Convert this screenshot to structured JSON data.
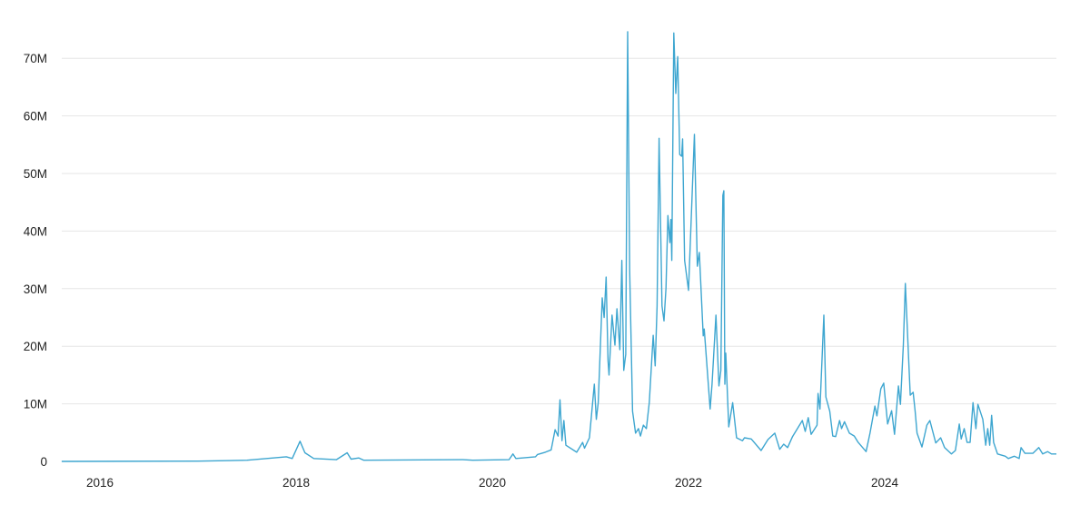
{
  "chart_data": {
    "type": "line",
    "title": "",
    "xlabel": "",
    "ylabel": "",
    "x_unit": "year",
    "xlim": [
      2015.6,
      2025.75
    ],
    "ylim": [
      0,
      75000000
    ],
    "grid": "horizontal",
    "legend": "none",
    "line_color": "#3ea6d0",
    "x_ticks": [
      "2016",
      "2018",
      "2020",
      "2022",
      "2024"
    ],
    "x_tick_values": [
      2016,
      2018,
      2020,
      2022,
      2024
    ],
    "y_ticks": [
      "0",
      "10M",
      "20M",
      "30M",
      "40M",
      "50M",
      "60M",
      "70M"
    ],
    "y_tick_values": [
      0,
      10,
      20,
      30,
      40,
      50,
      60,
      70
    ],
    "y_value_unit": "millions",
    "series": [
      {
        "points": [
          [
            2015.61,
            0
          ],
          [
            2017.0,
            0.05
          ],
          [
            2017.5,
            0.2
          ],
          [
            2017.9,
            0.8
          ],
          [
            2017.96,
            0.5
          ],
          [
            2018.04,
            3.5
          ],
          [
            2018.09,
            1.5
          ],
          [
            2018.18,
            0.5
          ],
          [
            2018.41,
            0.3
          ],
          [
            2018.52,
            1.5
          ],
          [
            2018.56,
            0.4
          ],
          [
            2018.64,
            0.6
          ],
          [
            2018.69,
            0.2
          ],
          [
            2019.7,
            0.3
          ],
          [
            2019.8,
            0.2
          ],
          [
            2020.17,
            0.3
          ],
          [
            2020.21,
            1.3
          ],
          [
            2020.24,
            0.5
          ],
          [
            2020.44,
            0.8
          ],
          [
            2020.46,
            1.2
          ],
          [
            2020.54,
            1.6
          ],
          [
            2020.6,
            2.0
          ],
          [
            2020.64,
            5.5
          ],
          [
            2020.67,
            4.4
          ],
          [
            2020.69,
            10.7
          ],
          [
            2020.71,
            3.6
          ],
          [
            2020.73,
            7.1
          ],
          [
            2020.75,
            2.8
          ],
          [
            2020.86,
            1.6
          ],
          [
            2020.92,
            3.3
          ],
          [
            2020.94,
            2.3
          ],
          [
            2020.99,
            4.1
          ],
          [
            2021.04,
            13.4
          ],
          [
            2021.06,
            7.3
          ],
          [
            2021.08,
            10.2
          ],
          [
            2021.12,
            28.4
          ],
          [
            2021.14,
            25
          ],
          [
            2021.16,
            32
          ],
          [
            2021.18,
            17.5
          ],
          [
            2021.19,
            15
          ],
          [
            2021.22,
            25.4
          ],
          [
            2021.25,
            20.2
          ],
          [
            2021.27,
            26.5
          ],
          [
            2021.3,
            19.4
          ],
          [
            2021.32,
            34.9
          ],
          [
            2021.34,
            15.8
          ],
          [
            2021.36,
            18.6
          ],
          [
            2021.38,
            74.6
          ],
          [
            2021.4,
            33.3
          ],
          [
            2021.43,
            8.7
          ],
          [
            2021.46,
            4.9
          ],
          [
            2021.49,
            5.7
          ],
          [
            2021.51,
            4.4
          ],
          [
            2021.54,
            6.3
          ],
          [
            2021.57,
            5.7
          ],
          [
            2021.6,
            10.2
          ],
          [
            2021.64,
            21.9
          ],
          [
            2021.66,
            16.6
          ],
          [
            2021.68,
            27
          ],
          [
            2021.7,
            56.1
          ],
          [
            2021.73,
            27
          ],
          [
            2021.75,
            24.4
          ],
          [
            2021.77,
            30.1
          ],
          [
            2021.79,
            42.7
          ],
          [
            2021.81,
            38
          ],
          [
            2021.82,
            42
          ],
          [
            2021.83,
            34.9
          ],
          [
            2021.85,
            74.4
          ],
          [
            2021.87,
            63.9
          ],
          [
            2021.89,
            70.3
          ],
          [
            2021.91,
            53.3
          ],
          [
            2021.93,
            53
          ],
          [
            2021.94,
            56
          ],
          [
            2021.96,
            34.9
          ],
          [
            2022.0,
            29.7
          ],
          [
            2022.06,
            56.8
          ],
          [
            2022.09,
            33.9
          ],
          [
            2022.11,
            36.3
          ],
          [
            2022.15,
            21.8
          ],
          [
            2022.16,
            23
          ],
          [
            2022.22,
            9.1
          ],
          [
            2022.24,
            13.4
          ],
          [
            2022.28,
            25.4
          ],
          [
            2022.31,
            13.1
          ],
          [
            2022.33,
            15.8
          ],
          [
            2022.35,
            46.2
          ],
          [
            2022.36,
            47
          ],
          [
            2022.37,
            13.4
          ],
          [
            2022.38,
            18.8
          ],
          [
            2022.41,
            6
          ],
          [
            2022.45,
            10.2
          ],
          [
            2022.49,
            4.1
          ],
          [
            2022.55,
            3.6
          ],
          [
            2022.57,
            4.1
          ],
          [
            2022.64,
            3.9
          ],
          [
            2022.74,
            1.9
          ],
          [
            2022.81,
            3.8
          ],
          [
            2022.88,
            4.9
          ],
          [
            2022.93,
            2.1
          ],
          [
            2022.97,
            3
          ],
          [
            2023.01,
            2.4
          ],
          [
            2023.06,
            4.3
          ],
          [
            2023.16,
            7.1
          ],
          [
            2023.19,
            5.2
          ],
          [
            2023.22,
            7.6
          ],
          [
            2023.25,
            4.7
          ],
          [
            2023.31,
            6.3
          ],
          [
            2023.32,
            11.8
          ],
          [
            2023.34,
            9.1
          ],
          [
            2023.38,
            25.4
          ],
          [
            2023.4,
            11.2
          ],
          [
            2023.44,
            8.7
          ],
          [
            2023.47,
            4.4
          ],
          [
            2023.5,
            4.3
          ],
          [
            2023.54,
            7.1
          ],
          [
            2023.56,
            5.7
          ],
          [
            2023.59,
            6.9
          ],
          [
            2023.64,
            4.9
          ],
          [
            2023.69,
            4.4
          ],
          [
            2023.73,
            3.3
          ],
          [
            2023.81,
            1.7
          ],
          [
            2023.85,
            4.9
          ],
          [
            2023.9,
            9.6
          ],
          [
            2023.92,
            7.9
          ],
          [
            2023.96,
            12.6
          ],
          [
            2023.99,
            13.6
          ],
          [
            2024.03,
            6.5
          ],
          [
            2024.07,
            8.8
          ],
          [
            2024.1,
            4.7
          ],
          [
            2024.14,
            13.1
          ],
          [
            2024.16,
            9.9
          ],
          [
            2024.19,
            20.2
          ],
          [
            2024.21,
            30.9
          ],
          [
            2024.26,
            11.5
          ],
          [
            2024.29,
            12
          ],
          [
            2024.31,
            8.7
          ],
          [
            2024.33,
            4.9
          ],
          [
            2024.38,
            2.5
          ],
          [
            2024.43,
            6.3
          ],
          [
            2024.46,
            7.1
          ],
          [
            2024.52,
            3.2
          ],
          [
            2024.57,
            4.1
          ],
          [
            2024.61,
            2.4
          ],
          [
            2024.68,
            1.3
          ],
          [
            2024.72,
            1.9
          ],
          [
            2024.76,
            6.5
          ],
          [
            2024.78,
            3.9
          ],
          [
            2024.81,
            5.7
          ],
          [
            2024.84,
            3.3
          ],
          [
            2024.87,
            3.3
          ],
          [
            2024.9,
            10.2
          ],
          [
            2024.93,
            5.7
          ],
          [
            2024.95,
            9.9
          ],
          [
            2025.0,
            7.3
          ],
          [
            2025.03,
            2.8
          ],
          [
            2025.05,
            5.7
          ],
          [
            2025.07,
            2.8
          ],
          [
            2025.09,
            8
          ],
          [
            2025.11,
            3.3
          ],
          [
            2025.15,
            1.3
          ],
          [
            2025.23,
            0.9
          ],
          [
            2025.26,
            0.5
          ],
          [
            2025.32,
            0.9
          ],
          [
            2025.37,
            0.5
          ],
          [
            2025.39,
            2.4
          ],
          [
            2025.43,
            1.4
          ],
          [
            2025.51,
            1.4
          ],
          [
            2025.57,
            2.4
          ],
          [
            2025.61,
            1.3
          ],
          [
            2025.66,
            1.7
          ],
          [
            2025.7,
            1.3
          ],
          [
            2025.75,
            1.3
          ]
        ]
      }
    ]
  }
}
